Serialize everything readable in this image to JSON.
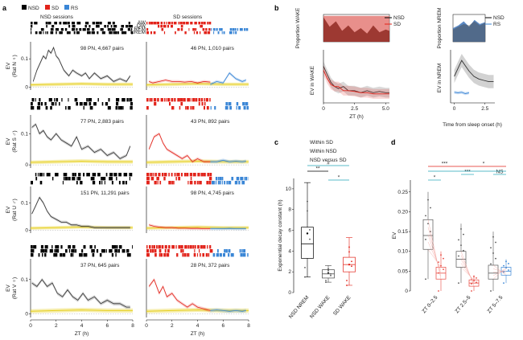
{
  "colors": {
    "nsd": "#000000",
    "sd": "#e2231a",
    "rs": "#3a86d6",
    "wake_fill": "#e06a64",
    "nrem_fill": "#3e74b9",
    "yellow": "#e6cf1c",
    "teal": "#21a5b8"
  },
  "panels": {
    "a": "a",
    "b": "b",
    "c": "c",
    "d": "d"
  },
  "legend_a": [
    "NSD",
    "SD",
    "RS"
  ],
  "chart_data": [
    {
      "id": "a",
      "type": "line",
      "title_left": "NSD sessions",
      "title_right": "SD sessions",
      "state_labels": [
        "AW",
        "QW",
        "REM",
        "NREM"
      ],
      "xlabel": "ZT (h)",
      "xticks": [
        "0",
        "2",
        "4",
        "6",
        "8"
      ],
      "xlim": [
        0,
        8
      ],
      "rows": [
        {
          "ylabel": "EV",
          "sublabel": "(Rat N ♀)",
          "yticks": [
            "0",
            "0.1"
          ],
          "ylim": [
            -0.01,
            0.16
          ],
          "left_note": "98 PN, 4,667 pairs",
          "right_note": "46 PN, 1,010 pairs",
          "nsd_x": [
            0.2,
            0.5,
            0.8,
            1.0,
            1.2,
            1.4,
            1.6,
            1.8,
            2.0,
            2.2,
            2.4,
            2.6,
            2.8,
            3.0,
            3.3,
            3.6,
            4.0,
            4.3,
            4.6,
            5.0,
            5.5,
            6.0,
            6.5,
            7.0,
            7.5,
            7.8
          ],
          "nsd_y": [
            0.02,
            0.06,
            0.09,
            0.11,
            0.1,
            0.13,
            0.12,
            0.14,
            0.11,
            0.1,
            0.08,
            0.06,
            0.05,
            0.04,
            0.06,
            0.05,
            0.04,
            0.05,
            0.03,
            0.05,
            0.03,
            0.04,
            0.02,
            0.03,
            0.02,
            0.04
          ],
          "sd_x": [
            0.2,
            0.5,
            1.0,
            1.5,
            2.0,
            2.5,
            3.0,
            3.5,
            4.0,
            4.5,
            5.0
          ],
          "sd_y": [
            0.02,
            0.015,
            0.02,
            0.025,
            0.02,
            0.02,
            0.018,
            0.02,
            0.015,
            0.02,
            0.018
          ],
          "rs_x": [
            5.0,
            5.5,
            6.0,
            6.5,
            7.0,
            7.5,
            7.8
          ],
          "rs_y": [
            0.01,
            0.02,
            0.015,
            0.05,
            0.03,
            0.02,
            0.025
          ]
        },
        {
          "ylabel": "EV",
          "sublabel": "(Rat S ♂)",
          "yticks": [
            "0",
            "0.1"
          ],
          "ylim": [
            -0.01,
            0.16
          ],
          "left_note": "77 PN, 2,883 pairs",
          "right_note": "43 PN, 892 pairs",
          "nsd_x": [
            0.1,
            0.4,
            0.7,
            1.0,
            1.3,
            1.6,
            2.0,
            2.4,
            2.8,
            3.2,
            3.6,
            4.0,
            4.5,
            5.0,
            5.5,
            6.0,
            6.5,
            7.0,
            7.5,
            7.8
          ],
          "nsd_y": [
            0.12,
            0.13,
            0.1,
            0.11,
            0.09,
            0.08,
            0.1,
            0.08,
            0.07,
            0.06,
            0.09,
            0.05,
            0.06,
            0.04,
            0.05,
            0.03,
            0.04,
            0.02,
            0.03,
            0.06
          ],
          "sd_x": [
            0.2,
            0.6,
            1.0,
            1.3,
            1.6,
            2.0,
            2.4,
            2.8,
            3.2,
            3.6,
            4.0,
            4.5,
            5.0
          ],
          "sd_y": [
            0.05,
            0.09,
            0.1,
            0.07,
            0.05,
            0.04,
            0.03,
            0.02,
            0.03,
            0.01,
            0.02,
            0.01,
            0.01
          ],
          "rs_x": [
            5.0,
            5.5,
            6.0,
            6.5,
            7.0,
            7.5,
            7.8
          ],
          "rs_y": [
            0.01,
            0.01,
            0.015,
            0.01,
            0.012,
            0.01,
            0.012
          ]
        },
        {
          "ylabel": "EV",
          "sublabel": "(Rat U ♂)",
          "yticks": [
            "0",
            "0.1"
          ],
          "ylim": [
            -0.01,
            0.16
          ],
          "left_note": "151 PN, 11,291 pairs",
          "right_note": "98 PN, 4,745 pairs",
          "nsd_x": [
            0.1,
            0.4,
            0.7,
            1.0,
            1.3,
            1.6,
            2.0,
            2.4,
            2.8,
            3.2,
            3.6,
            4.0,
            4.5,
            5.0,
            5.5,
            6.0,
            6.5,
            7.0,
            7.5,
            7.8
          ],
          "nsd_y": [
            0.06,
            0.09,
            0.12,
            0.1,
            0.07,
            0.05,
            0.04,
            0.03,
            0.03,
            0.02,
            0.02,
            0.015,
            0.015,
            0.01,
            0.01,
            0.01,
            0.01,
            0.01,
            0.01,
            0.01
          ],
          "sd_x": [
            0.2,
            0.6,
            1.0,
            1.5,
            2.0,
            2.5,
            3.0,
            3.5,
            4.0,
            4.5,
            5.0
          ],
          "sd_y": [
            0.02,
            0.015,
            0.012,
            0.01,
            0.01,
            0.008,
            0.008,
            0.007,
            0.007,
            0.006,
            0.006
          ],
          "rs_x": [
            5.0,
            5.5,
            6.0,
            6.5,
            7.0,
            7.5,
            7.8
          ],
          "rs_y": [
            0.006,
            0.006,
            0.006,
            0.007,
            0.006,
            0.006,
            0.006
          ]
        },
        {
          "ylabel": "EV",
          "sublabel": "(Rat V ♀)",
          "yticks": [
            "0",
            "0.1"
          ],
          "ylim": [
            -0.01,
            0.16
          ],
          "left_note": "37 PN, 645 pairs",
          "right_note": "28 PN, 372 pairs",
          "nsd_x": [
            0.1,
            0.5,
            0.9,
            1.3,
            1.7,
            2.1,
            2.5,
            2.9,
            3.3,
            3.7,
            4.1,
            4.5,
            5.0,
            5.5,
            6.0,
            6.5,
            7.0,
            7.5,
            7.8
          ],
          "nsd_y": [
            0.09,
            0.08,
            0.1,
            0.08,
            0.09,
            0.06,
            0.05,
            0.07,
            0.05,
            0.04,
            0.06,
            0.04,
            0.05,
            0.03,
            0.04,
            0.03,
            0.03,
            0.02,
            0.02
          ],
          "sd_x": [
            0.2,
            0.6,
            1.0,
            1.3,
            1.6,
            2.0,
            2.4,
            2.8,
            3.2,
            3.6,
            4.0,
            4.5,
            5.0
          ],
          "sd_y": [
            0.08,
            0.1,
            0.06,
            0.08,
            0.05,
            0.06,
            0.04,
            0.03,
            0.02,
            0.03,
            0.02,
            0.015,
            0.01
          ],
          "rs_x": [
            5.0,
            5.5,
            6.0,
            6.5,
            7.0,
            7.5,
            7.8
          ],
          "rs_y": [
            0.01,
            0.012,
            0.01,
            0.008,
            0.01,
            0.008,
            0.01
          ]
        }
      ]
    },
    {
      "id": "b_wake",
      "type": "area",
      "ylabel": "Proportion WAKE",
      "series": [
        {
          "name": "NSD",
          "x": [
            0,
            0.5,
            1,
            1.5,
            2,
            2.5,
            3,
            3.5,
            4,
            4.5,
            5,
            5.3
          ],
          "values": [
            0.9,
            0.55,
            0.75,
            0.4,
            0.6,
            0.35,
            0.5,
            0.3,
            0.6,
            0.35,
            0.45,
            0.4
          ]
        },
        {
          "name": "SD",
          "x": [
            0,
            0.5,
            1,
            1.5,
            2,
            2.5,
            3,
            3.5,
            4,
            4.5,
            5,
            5.3
          ],
          "values": [
            0.95,
            0.95,
            0.95,
            0.95,
            0.95,
            0.95,
            0.95,
            0.95,
            0.95,
            0.95,
            0.95,
            0.95
          ]
        }
      ]
    },
    {
      "id": "b_nrem",
      "type": "area",
      "ylabel": "Proportion NREM",
      "series": [
        {
          "name": "NSD",
          "x": [
            0,
            0.5,
            1,
            1.5,
            2,
            2.5,
            3
          ],
          "values": [
            0.45,
            0.55,
            0.65,
            0.6,
            0.75,
            0.6,
            0.7
          ]
        },
        {
          "name": "RS",
          "x": [
            0,
            0.5,
            1,
            1.5,
            2,
            2.5,
            3
          ],
          "values": [
            0.5,
            0.6,
            0.75,
            0.55,
            0.8,
            0.65,
            0.72
          ]
        }
      ]
    },
    {
      "id": "b_ev_wake",
      "type": "line",
      "ylabel": "EV in WAKE",
      "xlabel": "ZT (h)",
      "xticks": [
        "0",
        "2.5",
        "5.0"
      ],
      "xlim": [
        0,
        5.3
      ],
      "series": [
        {
          "name": "NSD",
          "x": [
            0,
            0.3,
            0.6,
            0.9,
            1.2,
            1.6,
            2,
            2.5,
            3,
            3.5,
            4,
            4.5,
            5,
            5.3
          ],
          "values": [
            0.08,
            0.06,
            0.04,
            0.03,
            0.025,
            0.03,
            0.02,
            0.02,
            0.015,
            0.02,
            0.015,
            0.018,
            0.015,
            0.015
          ]
        },
        {
          "name": "SD",
          "x": [
            0,
            0.3,
            0.6,
            0.9,
            1.2,
            1.6,
            2,
            2.5,
            3,
            3.5,
            4,
            4.5,
            5,
            5.3
          ],
          "values": [
            0.07,
            0.05,
            0.035,
            0.03,
            0.03,
            0.02,
            0.02,
            0.018,
            0.015,
            0.015,
            0.012,
            0.012,
            0.012,
            0.012
          ]
        }
      ]
    },
    {
      "id": "b_ev_nrem",
      "type": "line",
      "ylabel": "EV in NREM",
      "xlabel": "Time from sleep onset (h)",
      "xticks": [
        "0",
        "2.5"
      ],
      "xlim": [
        -0.3,
        3.3
      ],
      "series": [
        {
          "name": "NSD",
          "x": [
            0,
            0.3,
            0.6,
            0.9,
            1.2,
            1.6,
            2,
            2.4,
            2.8,
            3.2
          ],
          "values": [
            0.1,
            0.13,
            0.16,
            0.14,
            0.12,
            0.1,
            0.09,
            0.085,
            0.08,
            0.08
          ]
        },
        {
          "name": "RS",
          "x": [
            0,
            0.3,
            0.6,
            0.9,
            1.2
          ],
          "values": [
            0.04,
            0.038,
            0.04,
            0.035,
            0.038
          ]
        }
      ]
    },
    {
      "id": "c",
      "type": "box",
      "ylabel": "Exponential decay constant (h)",
      "legend": [
        "Within SD",
        "Within NSD",
        "NSD versus SD"
      ],
      "yticks": [
        "0",
        "2",
        "4",
        "6",
        "8",
        "10"
      ],
      "ylim": [
        0,
        11
      ],
      "categories": [
        "NSD NREM",
        "NSD WAKE",
        "SD WAKE"
      ],
      "boxes": [
        {
          "q1": 3.3,
          "median": 4.7,
          "q3": 6.3,
          "whisker_low": 1.5,
          "whisker_high": 10.6,
          "mean": 5.7
        },
        {
          "q1": 1.4,
          "median": 1.8,
          "q3": 2.2,
          "whisker_low": 1.0,
          "whisker_high": 2.6,
          "mean": 1.9
        },
        {
          "q1": 2.0,
          "median": 2.7,
          "q3": 3.4,
          "whisker_low": 0.7,
          "whisker_high": 5.3,
          "mean": 2.7
        }
      ],
      "significance": [
        "**",
        "*",
        "#"
      ]
    },
    {
      "id": "d",
      "type": "box",
      "ylabel": "EV",
      "yticks": [
        "0",
        "0.05",
        "0.10",
        "0.15",
        "0.20",
        "0.25"
      ],
      "ylim": [
        0,
        0.28
      ],
      "categories": [
        "ZT 0–2.5",
        "ZT 2.5–5",
        "ZT 5–7.5"
      ],
      "boxes": [
        {
          "group": "NSD",
          "q1": 0.105,
          "median": 0.14,
          "q3": 0.18,
          "whisker_low": 0.03,
          "whisker_high": 0.25
        },
        {
          "group": "SD",
          "q1": 0.03,
          "median": 0.045,
          "q3": 0.06,
          "whisker_low": 0.0,
          "whisker_high": 0.1
        },
        {
          "group": "NSD",
          "q1": 0.06,
          "median": 0.08,
          "q3": 0.1,
          "whisker_low": 0.02,
          "whisker_high": 0.17
        },
        {
          "group": "SD",
          "q1": 0.012,
          "median": 0.02,
          "q3": 0.028,
          "whisker_low": 0.0,
          "whisker_high": 0.04
        },
        {
          "group": "NSD",
          "q1": 0.03,
          "median": 0.045,
          "q3": 0.065,
          "whisker_low": 0.0,
          "whisker_high": 0.15
        },
        {
          "group": "RS",
          "q1": 0.04,
          "median": 0.05,
          "q3": 0.06,
          "whisker_low": 0.02,
          "whisker_high": 0.08
        }
      ],
      "significance": [
        "***",
        "*",
        "*",
        "***",
        "NS"
      ]
    }
  ]
}
